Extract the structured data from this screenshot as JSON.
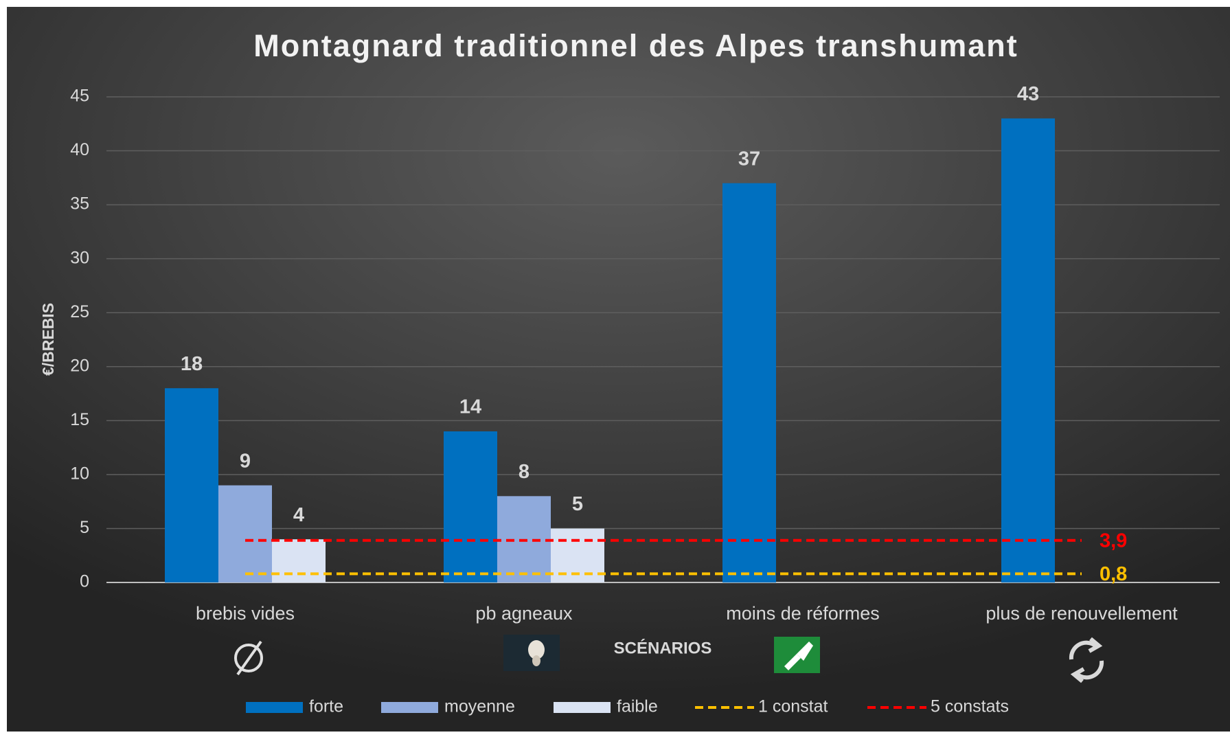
{
  "chart_data": {
    "type": "bar",
    "title": "Montagnard traditionnel des Alpes transhumant",
    "x_label": "SCÉNARIOS",
    "y_label": "€/BREBIS",
    "categories": [
      "brebis vides",
      "pb agneaux",
      "moins de réformes",
      "plus de renouvellement"
    ],
    "series": [
      {
        "name": "forte",
        "type": "bar",
        "color": "#0070c0",
        "values": [
          18,
          14,
          37,
          43
        ]
      },
      {
        "name": "moyenne",
        "type": "bar",
        "color": "#8faadc",
        "values": [
          9,
          8,
          null,
          null
        ]
      },
      {
        "name": "faible",
        "type": "bar",
        "color": "#dae3f3",
        "values": [
          4,
          5,
          null,
          null
        ]
      },
      {
        "name": "1 constat",
        "type": "line",
        "color": "#ffc000",
        "values": [
          0.8,
          0.8,
          0.8,
          0.8
        ],
        "value_labels": [
          null,
          null,
          null,
          "0,8"
        ]
      },
      {
        "name": "5 constats",
        "type": "line",
        "color": "#ff0000",
        "values": [
          3.9,
          3.9,
          3.9,
          3.9
        ],
        "value_labels": [
          null,
          null,
          null,
          "3,9"
        ]
      }
    ],
    "ylim": [
      0,
      45
    ],
    "yticks": [
      0,
      5,
      10,
      15,
      20,
      25,
      30,
      35,
      40,
      45
    ],
    "grid": true,
    "legend": "bottom"
  }
}
